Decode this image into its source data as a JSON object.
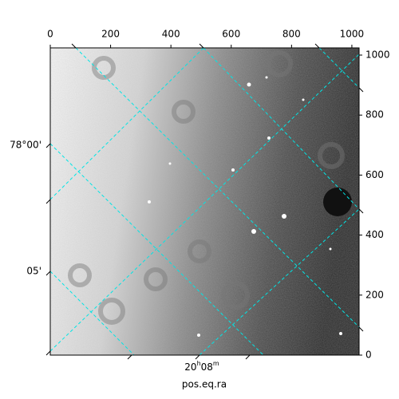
{
  "chart_data": {
    "type": "image",
    "xlim": [
      0,
      1024
    ],
    "xticks": [
      0,
      200,
      400,
      600,
      800,
      1000
    ],
    "ylim": [
      0,
      1024
    ],
    "yticks": [
      0,
      200,
      400,
      600,
      800,
      1000
    ],
    "dec_tick_labels": [
      "78°00'",
      "05'"
    ],
    "ra_tick_label": [
      "20",
      "h",
      "08",
      "m"
    ],
    "xlabel": "pos.eq.ra",
    "grid_color": "#00e5e5"
  }
}
